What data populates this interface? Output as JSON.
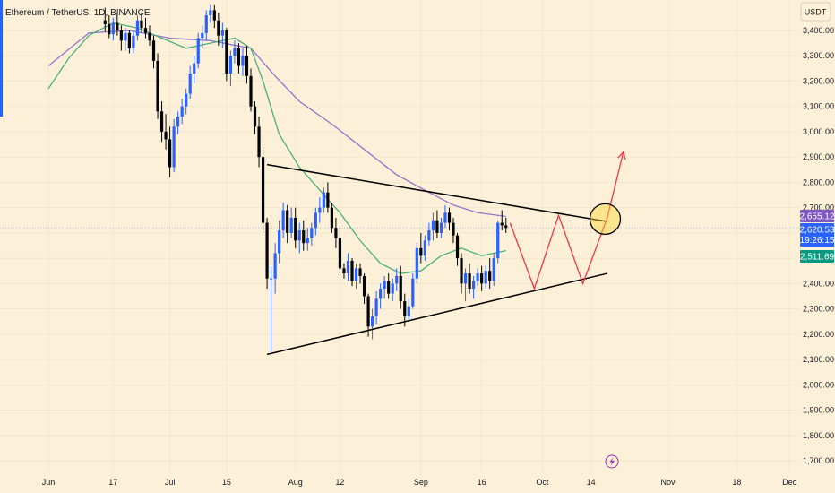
{
  "symbol": {
    "title": "Ethereum / TetherUS, 1D, BINANCE"
  },
  "price_axis": {
    "currency": "USDT"
  },
  "badges": [
    {
      "label": "2,655.12",
      "color": "#7e57c2"
    },
    {
      "label": "2,620.53",
      "color": "#2962ff"
    },
    {
      "label": "19:26:15",
      "color": "#2962ff"
    },
    {
      "label": "2,511.69",
      "color": "#089981"
    }
  ],
  "chart_data": {
    "type": "candlestick",
    "ylim": [
      1650,
      3500
    ],
    "y_ticks": [
      "3,400.00",
      "3,300.00",
      "3,200.00",
      "3,100.00",
      "3,000.00",
      "2,900.00",
      "2,800.00",
      "2,700.00",
      "2,600.00",
      "2,500.00",
      "2,400.00",
      "2,300.00",
      "2,200.00",
      "2,100.00",
      "2,000.00",
      "1,900.00",
      "1,800.00",
      "1,700.00"
    ],
    "y_tick_values": [
      3400,
      3300,
      3200,
      3100,
      3000,
      2900,
      2800,
      2700,
      2600,
      2500,
      2400,
      2300,
      2200,
      2100,
      2000,
      1900,
      1800,
      1700
    ],
    "x_ticks": [
      "Jun",
      "17",
      "Jul",
      "15",
      "Aug",
      "12",
      "Sep",
      "16",
      "Oct",
      "14",
      "Nov",
      "18",
      "Dec"
    ],
    "x_tick_days": [
      0,
      16,
      30,
      44,
      61,
      72,
      92,
      107,
      122,
      134,
      153,
      170,
      183
    ],
    "last_price": 2620.53,
    "colors": {
      "up": "#2962ff",
      "down": "#000000",
      "ma_fast": "#4caf7a",
      "ma_slow": "#9575cd",
      "projection": "#f23645"
    },
    "candles": [
      [
        14,
        3440,
        3490,
        3395,
        3425
      ],
      [
        15,
        3425,
        3460,
        3370,
        3385
      ],
      [
        16,
        3385,
        3450,
        3360,
        3430
      ],
      [
        17,
        3430,
        3470,
        3380,
        3400
      ],
      [
        18,
        3400,
        3420,
        3320,
        3360
      ],
      [
        19,
        3360,
        3410,
        3320,
        3390
      ],
      [
        20,
        3390,
        3400,
        3310,
        3330
      ],
      [
        21,
        3330,
        3400,
        3310,
        3380
      ],
      [
        22,
        3380,
        3460,
        3360,
        3440
      ],
      [
        23,
        3440,
        3470,
        3390,
        3410
      ],
      [
        24,
        3410,
        3450,
        3370,
        3390
      ],
      [
        25,
        3390,
        3420,
        3340,
        3360
      ],
      [
        26,
        3360,
        3380,
        3250,
        3280
      ],
      [
        27,
        3280,
        3310,
        3050,
        3080
      ],
      [
        28,
        3080,
        3120,
        2960,
        3000
      ],
      [
        29,
        3000,
        3070,
        2930,
        2970
      ],
      [
        30,
        2970,
        3020,
        2820,
        2860
      ],
      [
        31,
        2860,
        3050,
        2840,
        3020
      ],
      [
        32,
        3020,
        3080,
        2990,
        3060
      ],
      [
        33,
        3060,
        3130,
        3030,
        3100
      ],
      [
        34,
        3100,
        3170,
        3070,
        3150
      ],
      [
        35,
        3150,
        3260,
        3130,
        3230
      ],
      [
        36,
        3230,
        3300,
        3190,
        3270
      ],
      [
        37,
        3270,
        3390,
        3250,
        3370
      ],
      [
        38,
        3370,
        3420,
        3330,
        3390
      ],
      [
        39,
        3390,
        3480,
        3360,
        3460
      ],
      [
        40,
        3460,
        3500,
        3430,
        3480
      ],
      [
        41,
        3480,
        3500,
        3410,
        3440
      ],
      [
        42,
        3440,
        3470,
        3340,
        3380
      ],
      [
        43,
        3380,
        3430,
        3330,
        3400
      ],
      [
        44,
        3400,
        3410,
        3200,
        3230
      ],
      [
        45,
        3230,
        3320,
        3180,
        3300
      ],
      [
        46,
        3300,
        3360,
        3270,
        3330
      ],
      [
        47,
        3330,
        3350,
        3230,
        3260
      ],
      [
        48,
        3260,
        3330,
        3220,
        3300
      ],
      [
        49,
        3300,
        3340,
        3190,
        3220
      ],
      [
        50,
        3220,
        3250,
        3080,
        3100
      ],
      [
        51,
        3100,
        3120,
        2990,
        3020
      ],
      [
        52,
        3020,
        3060,
        2860,
        2900
      ],
      [
        53,
        2900,
        2940,
        2600,
        2640
      ],
      [
        54,
        2640,
        2660,
        2380,
        2420
      ],
      [
        55,
        2420,
        2470,
        2130,
        2420
      ],
      [
        56,
        2420,
        2560,
        2360,
        2520
      ],
      [
        57,
        2520,
        2650,
        2480,
        2610
      ],
      [
        58,
        2610,
        2720,
        2580,
        2690
      ],
      [
        59,
        2690,
        2710,
        2560,
        2600
      ],
      [
        60,
        2600,
        2700,
        2580,
        2660
      ],
      [
        61,
        2660,
        2700,
        2540,
        2570
      ],
      [
        62,
        2570,
        2640,
        2520,
        2610
      ],
      [
        63,
        2610,
        2650,
        2530,
        2560
      ],
      [
        64,
        2560,
        2620,
        2530,
        2580
      ],
      [
        65,
        2580,
        2640,
        2550,
        2620
      ],
      [
        66,
        2620,
        2700,
        2590,
        2680
      ],
      [
        67,
        2680,
        2740,
        2640,
        2700
      ],
      [
        68,
        2700,
        2780,
        2680,
        2760
      ],
      [
        69,
        2760,
        2800,
        2680,
        2700
      ],
      [
        70,
        2700,
        2720,
        2600,
        2620
      ],
      [
        71,
        2620,
        2660,
        2540,
        2580
      ],
      [
        72,
        2580,
        2620,
        2440,
        2460
      ],
      [
        73,
        2460,
        2480,
        2420,
        2440
      ],
      [
        74,
        2440,
        2520,
        2410,
        2490
      ],
      [
        75,
        2490,
        2500,
        2390,
        2410
      ],
      [
        76,
        2410,
        2480,
        2380,
        2460
      ],
      [
        77,
        2460,
        2480,
        2400,
        2430
      ],
      [
        78,
        2430,
        2440,
        2320,
        2350
      ],
      [
        79,
        2350,
        2360,
        2190,
        2230
      ],
      [
        80,
        2230,
        2300,
        2180,
        2270
      ],
      [
        81,
        2270,
        2370,
        2240,
        2340
      ],
      [
        82,
        2340,
        2400,
        2300,
        2380
      ],
      [
        83,
        2380,
        2430,
        2340,
        2410
      ],
      [
        84,
        2410,
        2440,
        2340,
        2360
      ],
      [
        85,
        2360,
        2420,
        2330,
        2400
      ],
      [
        86,
        2400,
        2460,
        2370,
        2430
      ],
      [
        87,
        2430,
        2470,
        2300,
        2330
      ],
      [
        88,
        2330,
        2360,
        2230,
        2270
      ],
      [
        89,
        2270,
        2340,
        2250,
        2310
      ],
      [
        90,
        2310,
        2440,
        2300,
        2420
      ],
      [
        91,
        2420,
        2560,
        2400,
        2540
      ],
      [
        92,
        2540,
        2600,
        2480,
        2510
      ],
      [
        93,
        2510,
        2590,
        2490,
        2570
      ],
      [
        94,
        2570,
        2640,
        2550,
        2610
      ],
      [
        95,
        2610,
        2680,
        2570,
        2650
      ],
      [
        96,
        2650,
        2690,
        2580,
        2600
      ],
      [
        97,
        2600,
        2660,
        2580,
        2640
      ],
      [
        98,
        2640,
        2710,
        2620,
        2680
      ],
      [
        99,
        2680,
        2700,
        2610,
        2640
      ],
      [
        100,
        2640,
        2660,
        2560,
        2590
      ],
      [
        101,
        2590,
        2600,
        2470,
        2500
      ],
      [
        102,
        2500,
        2520,
        2360,
        2400
      ],
      [
        103,
        2400,
        2460,
        2330,
        2440
      ],
      [
        104,
        2440,
        2480,
        2360,
        2380
      ],
      [
        105,
        2380,
        2430,
        2340,
        2410
      ],
      [
        106,
        2410,
        2460,
        2390,
        2440
      ],
      [
        107,
        2440,
        2470,
        2370,
        2400
      ],
      [
        108,
        2400,
        2470,
        2380,
        2450
      ],
      [
        109,
        2450,
        2500,
        2380,
        2410
      ],
      [
        110,
        2410,
        2520,
        2390,
        2500
      ],
      [
        111,
        2500,
        2650,
        2480,
        2640
      ],
      [
        112,
        2640,
        2690,
        2610,
        2630
      ],
      [
        113,
        2630,
        2660,
        2600,
        2620
      ]
    ],
    "ma_fast": [
      [
        0,
        3170
      ],
      [
        5,
        3290
      ],
      [
        10,
        3380
      ],
      [
        16,
        3430
      ],
      [
        22,
        3410
      ],
      [
        28,
        3370
      ],
      [
        34,
        3330
      ],
      [
        40,
        3350
      ],
      [
        46,
        3370
      ],
      [
        50,
        3330
      ],
      [
        53,
        3200
      ],
      [
        57,
        2990
      ],
      [
        62,
        2860
      ],
      [
        67,
        2770
      ],
      [
        72,
        2680
      ],
      [
        77,
        2570
      ],
      [
        82,
        2480
      ],
      [
        87,
        2440
      ],
      [
        92,
        2450
      ],
      [
        97,
        2510
      ],
      [
        102,
        2540
      ],
      [
        107,
        2510
      ],
      [
        113,
        2530
      ]
    ],
    "ma_slow": [
      [
        0,
        3260
      ],
      [
        10,
        3390
      ],
      [
        20,
        3400
      ],
      [
        30,
        3370
      ],
      [
        40,
        3360
      ],
      [
        50,
        3330
      ],
      [
        56,
        3220
      ],
      [
        62,
        3120
      ],
      [
        70,
        3030
      ],
      [
        78,
        2930
      ],
      [
        86,
        2830
      ],
      [
        94,
        2760
      ],
      [
        100,
        2710
      ],
      [
        106,
        2680
      ],
      [
        113,
        2665
      ]
    ],
    "trendlines": [
      [
        [
          54,
          2870
        ],
        [
          138,
          2645
        ]
      ],
      [
        [
          54,
          2120
        ],
        [
          138,
          2440
        ]
      ]
    ],
    "projection_path": [
      [
        114,
        2640
      ],
      [
        120,
        2380
      ],
      [
        126,
        2670
      ],
      [
        132,
        2400
      ],
      [
        138,
        2660
      ],
      [
        142,
        2920
      ]
    ],
    "target_circle": {
      "day": 137.5,
      "price": 2655
    }
  }
}
